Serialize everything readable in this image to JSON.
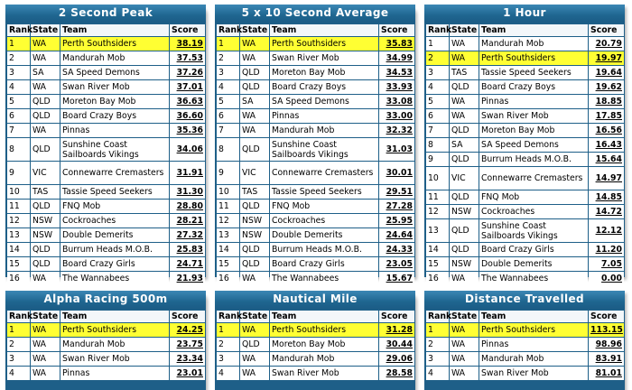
{
  "columns": {
    "rank": "Rank",
    "state": "State",
    "team": "Team",
    "score": "Score"
  },
  "panels": [
    {
      "title": "2 Second Peak",
      "rows": [
        {
          "rank": "1",
          "state": "WA",
          "team": "Perth Southsiders",
          "score": "38.19",
          "highlight": true
        },
        {
          "rank": "2",
          "state": "WA",
          "team": "Mandurah Mob",
          "score": "37.53"
        },
        {
          "rank": "3",
          "state": "SA",
          "team": "SA Speed Demons",
          "score": "37.26"
        },
        {
          "rank": "4",
          "state": "WA",
          "team": "Swan River Mob",
          "score": "37.01"
        },
        {
          "rank": "5",
          "state": "QLD",
          "team": "Moreton Bay Mob",
          "score": "36.63"
        },
        {
          "rank": "6",
          "state": "QLD",
          "team": "Board Crazy Boys",
          "score": "36.60"
        },
        {
          "rank": "7",
          "state": "WA",
          "team": "Pinnas",
          "score": "35.36"
        },
        {
          "rank": "8",
          "state": "QLD",
          "team": "Sunshine Coast Sailboards Vikings",
          "score": "34.06"
        },
        {
          "rank": "9",
          "state": "VIC",
          "team": "Connewarre Cremasters",
          "score": "31.91"
        },
        {
          "rank": "10",
          "state": "TAS",
          "team": "Tassie Speed Seekers",
          "score": "31.30"
        },
        {
          "rank": "11",
          "state": "QLD",
          "team": "FNQ Mob",
          "score": "28.80"
        },
        {
          "rank": "12",
          "state": "NSW",
          "team": "Cockroaches",
          "score": "28.21"
        },
        {
          "rank": "13",
          "state": "NSW",
          "team": "Double Demerits",
          "score": "27.32"
        },
        {
          "rank": "14",
          "state": "QLD",
          "team": "Burrum Heads M.O.B.",
          "score": "25.83"
        },
        {
          "rank": "15",
          "state": "QLD",
          "team": "Board Crazy Girls",
          "score": "24.71"
        },
        {
          "rank": "16",
          "state": "WA",
          "team": "The Wannabees",
          "score": "21.93"
        }
      ]
    },
    {
      "title": "5 x 10 Second Average",
      "rows": [
        {
          "rank": "1",
          "state": "WA",
          "team": "Perth Southsiders",
          "score": "35.83",
          "highlight": true
        },
        {
          "rank": "2",
          "state": "WA",
          "team": "Swan River Mob",
          "score": "34.99"
        },
        {
          "rank": "3",
          "state": "QLD",
          "team": "Moreton Bay Mob",
          "score": "34.53"
        },
        {
          "rank": "4",
          "state": "QLD",
          "team": "Board Crazy Boys",
          "score": "33.93"
        },
        {
          "rank": "5",
          "state": "SA",
          "team": "SA Speed Demons",
          "score": "33.08"
        },
        {
          "rank": "6",
          "state": "WA",
          "team": "Pinnas",
          "score": "33.00"
        },
        {
          "rank": "7",
          "state": "WA",
          "team": "Mandurah Mob",
          "score": "32.32"
        },
        {
          "rank": "8",
          "state": "QLD",
          "team": "Sunshine Coast Sailboards Vikings",
          "score": "31.03"
        },
        {
          "rank": "9",
          "state": "VIC",
          "team": "Connewarre Cremasters",
          "score": "30.01"
        },
        {
          "rank": "10",
          "state": "TAS",
          "team": "Tassie Speed Seekers",
          "score": "29.51"
        },
        {
          "rank": "11",
          "state": "QLD",
          "team": "FNQ Mob",
          "score": "27.28"
        },
        {
          "rank": "12",
          "state": "NSW",
          "team": "Cockroaches",
          "score": "25.95"
        },
        {
          "rank": "13",
          "state": "NSW",
          "team": "Double Demerits",
          "score": "24.64"
        },
        {
          "rank": "14",
          "state": "QLD",
          "team": "Burrum Heads M.O.B.",
          "score": "24.33"
        },
        {
          "rank": "15",
          "state": "QLD",
          "team": "Board Crazy Girls",
          "score": "23.05"
        },
        {
          "rank": "16",
          "state": "WA",
          "team": "The Wannabees",
          "score": "15.67"
        }
      ]
    },
    {
      "title": "1 Hour",
      "rows": [
        {
          "rank": "1",
          "state": "WA",
          "team": "Mandurah Mob",
          "score": "20.79"
        },
        {
          "rank": "2",
          "state": "WA",
          "team": "Perth Southsiders",
          "score": "19.97",
          "highlight": true
        },
        {
          "rank": "3",
          "state": "TAS",
          "team": "Tassie Speed Seekers",
          "score": "19.64"
        },
        {
          "rank": "4",
          "state": "QLD",
          "team": "Board Crazy Boys",
          "score": "19.62"
        },
        {
          "rank": "5",
          "state": "WA",
          "team": "Pinnas",
          "score": "18.85"
        },
        {
          "rank": "6",
          "state": "WA",
          "team": "Swan River Mob",
          "score": "17.85"
        },
        {
          "rank": "7",
          "state": "QLD",
          "team": "Moreton Bay Mob",
          "score": "16.56"
        },
        {
          "rank": "8",
          "state": "SA",
          "team": "SA Speed Demons",
          "score": "16.43"
        },
        {
          "rank": "9",
          "state": "QLD",
          "team": "Burrum Heads M.O.B.",
          "score": "15.64"
        },
        {
          "rank": "10",
          "state": "VIC",
          "team": "Connewarre Cremasters",
          "score": "14.97"
        },
        {
          "rank": "11",
          "state": "QLD",
          "team": "FNQ Mob",
          "score": "14.85"
        },
        {
          "rank": "12",
          "state": "NSW",
          "team": "Cockroaches",
          "score": "14.72"
        },
        {
          "rank": "13",
          "state": "QLD",
          "team": "Sunshine Coast Sailboards Vikings",
          "score": "12.12"
        },
        {
          "rank": "14",
          "state": "QLD",
          "team": "Board Crazy Girls",
          "score": "11.20"
        },
        {
          "rank": "15",
          "state": "NSW",
          "team": "Double Demerits",
          "score": "7.05"
        },
        {
          "rank": "16",
          "state": "WA",
          "team": "The Wannabees",
          "score": "0.00"
        }
      ]
    },
    {
      "title": "Alpha Racing 500m",
      "rows": [
        {
          "rank": "1",
          "state": "WA",
          "team": "Perth Southsiders",
          "score": "24.25",
          "highlight": true
        },
        {
          "rank": "2",
          "state": "WA",
          "team": "Mandurah Mob",
          "score": "23.75"
        },
        {
          "rank": "3",
          "state": "WA",
          "team": "Swan River Mob",
          "score": "23.34"
        },
        {
          "rank": "4",
          "state": "WA",
          "team": "Pinnas",
          "score": "23.01"
        }
      ]
    },
    {
      "title": "Nautical Mile",
      "rows": [
        {
          "rank": "1",
          "state": "WA",
          "team": "Perth Southsiders",
          "score": "31.28",
          "highlight": true
        },
        {
          "rank": "2",
          "state": "QLD",
          "team": "Moreton Bay Mob",
          "score": "30.44"
        },
        {
          "rank": "3",
          "state": "WA",
          "team": "Mandurah Mob",
          "score": "29.06"
        },
        {
          "rank": "4",
          "state": "WA",
          "team": "Swan River Mob",
          "score": "28.58"
        }
      ]
    },
    {
      "title": "Distance Travelled",
      "rows": [
        {
          "rank": "1",
          "state": "WA",
          "team": "Perth Southsiders",
          "score": "113.15",
          "highlight": true
        },
        {
          "rank": "2",
          "state": "WA",
          "team": "Pinnas",
          "score": "98.96"
        },
        {
          "rank": "3",
          "state": "WA",
          "team": "Mandurah Mob",
          "score": "83.91"
        },
        {
          "rank": "4",
          "state": "WA",
          "team": "Swan River Mob",
          "score": "81.01"
        }
      ]
    }
  ]
}
